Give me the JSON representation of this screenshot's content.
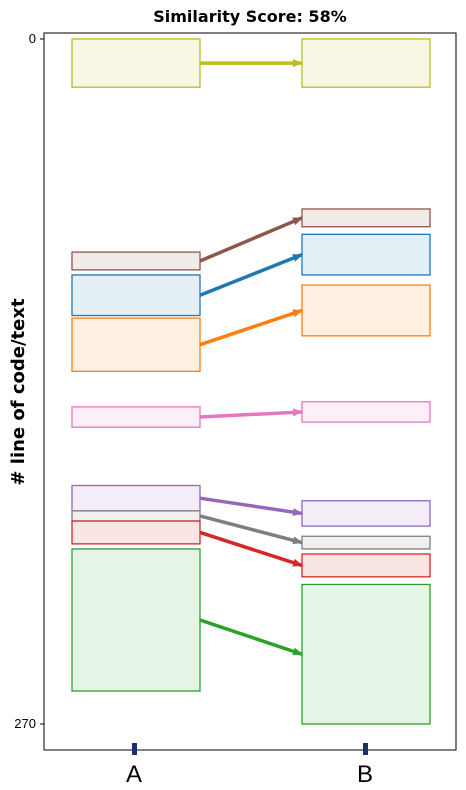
{
  "chart_data": {
    "type": "bar",
    "title": "Similarity Score: 58%",
    "ylabel": "# line of code/text",
    "categories": [
      "A",
      "B"
    ],
    "ylim": [
      0,
      270
    ],
    "yticks": [
      0,
      270
    ],
    "y_inverted": true,
    "matches": [
      {
        "color": "#bcbd22",
        "a": [
          0,
          19
        ],
        "b": [
          0,
          19
        ]
      },
      {
        "color": "#8c564b",
        "a": [
          84,
          91
        ],
        "b": [
          67,
          74
        ]
      },
      {
        "color": "#1f77b4",
        "a": [
          93,
          109
        ],
        "b": [
          77,
          93
        ]
      },
      {
        "color": "#ff7f0e",
        "a": [
          110,
          131
        ],
        "b": [
          97,
          117
        ]
      },
      {
        "color": "#e377c2",
        "a": [
          145,
          153
        ],
        "b": [
          143,
          151
        ]
      },
      {
        "color": "#9467bd",
        "a": [
          176,
          186
        ],
        "b": [
          182,
          192
        ]
      },
      {
        "color": "#7f7f7f",
        "a": [
          186,
          190
        ],
        "b": [
          196,
          201
        ]
      },
      {
        "color": "#d62728",
        "a": [
          190,
          199
        ],
        "b": [
          203,
          212
        ]
      },
      {
        "color": "#2ca02c",
        "a": [
          201,
          257
        ],
        "b": [
          215,
          270
        ]
      }
    ]
  }
}
